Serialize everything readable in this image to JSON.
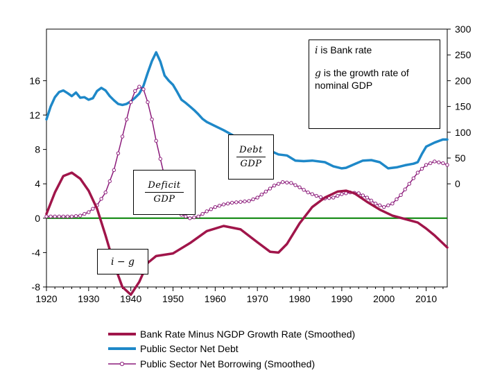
{
  "chart_data": {
    "type": "line",
    "x_range": [
      1920,
      2015
    ],
    "x_ticks": [
      "1920",
      "1930",
      "1940",
      "1950",
      "1960",
      "1970",
      "1980",
      "1990",
      "2000",
      "2010"
    ],
    "left_axis": {
      "range": [
        -8,
        22
      ],
      "ticks": [
        "16",
        "12",
        "8",
        "4",
        "0",
        "-4",
        "-8"
      ]
    },
    "right_axis": {
      "range": [
        -200,
        300
      ],
      "ticks": [
        "300",
        "250",
        "200",
        "150",
        "100",
        "50",
        "0"
      ]
    },
    "zero_line_color": "#008000",
    "series": [
      {
        "name": "Bank Rate Minus NGDP Growth Rate (Smoothed)",
        "color": "#a0154a",
        "axis": "left",
        "marker": "none",
        "points": [
          [
            1920,
            0.5
          ],
          [
            1922,
            3.0
          ],
          [
            1924,
            4.9
          ],
          [
            1926,
            5.3
          ],
          [
            1928,
            4.6
          ],
          [
            1930,
            3.2
          ],
          [
            1932,
            1.1
          ],
          [
            1934,
            -2.0
          ],
          [
            1936,
            -5.3
          ],
          [
            1938,
            -8.0
          ],
          [
            1940,
            -8.9
          ],
          [
            1942,
            -7.4
          ],
          [
            1944,
            -5.2
          ],
          [
            1946,
            -4.4
          ],
          [
            1950,
            -4.1
          ],
          [
            1954,
            -2.9
          ],
          [
            1958,
            -1.5
          ],
          [
            1962,
            -0.9
          ],
          [
            1966,
            -1.3
          ],
          [
            1970,
            -2.8
          ],
          [
            1973,
            -3.9
          ],
          [
            1975,
            -4.0
          ],
          [
            1977,
            -3.0
          ],
          [
            1980,
            -0.6
          ],
          [
            1983,
            1.3
          ],
          [
            1986,
            2.4
          ],
          [
            1989,
            3.1
          ],
          [
            1991,
            3.2
          ],
          [
            1993,
            2.9
          ],
          [
            1996,
            1.9
          ],
          [
            1999,
            1.0
          ],
          [
            2002,
            0.3
          ],
          [
            2005,
            -0.1
          ],
          [
            2008,
            -0.5
          ],
          [
            2010,
            -1.2
          ],
          [
            2012,
            -2.0
          ],
          [
            2015,
            -3.4
          ]
        ]
      },
      {
        "name": "Public Sector Net Debt",
        "color": "#1e88c8",
        "axis": "right",
        "marker": "none",
        "points": [
          [
            1920,
            125
          ],
          [
            1921,
            150
          ],
          [
            1922,
            168
          ],
          [
            1923,
            178
          ],
          [
            1924,
            181
          ],
          [
            1925,
            176
          ],
          [
            1926,
            170
          ],
          [
            1927,
            177
          ],
          [
            1928,
            167
          ],
          [
            1929,
            168
          ],
          [
            1930,
            163
          ],
          [
            1931,
            166
          ],
          [
            1932,
            180
          ],
          [
            1933,
            186
          ],
          [
            1934,
            181
          ],
          [
            1935,
            170
          ],
          [
            1936,
            162
          ],
          [
            1937,
            155
          ],
          [
            1938,
            153
          ],
          [
            1939,
            155
          ],
          [
            1940,
            160
          ],
          [
            1941,
            167
          ],
          [
            1942,
            175
          ],
          [
            1943,
            190
          ],
          [
            1944,
            215
          ],
          [
            1945,
            238
          ],
          [
            1946,
            255
          ],
          [
            1947,
            237
          ],
          [
            1948,
            210
          ],
          [
            1949,
            200
          ],
          [
            1950,
            192
          ],
          [
            1951,
            178
          ],
          [
            1952,
            163
          ],
          [
            1953,
            157
          ],
          [
            1954,
            150
          ],
          [
            1955,
            143
          ],
          [
            1956,
            135
          ],
          [
            1957,
            126
          ],
          [
            1958,
            120
          ],
          [
            1960,
            112
          ],
          [
            1962,
            104
          ],
          [
            1964,
            95
          ],
          [
            1966,
            85
          ],
          [
            1968,
            78
          ],
          [
            1970,
            73
          ],
          [
            1972,
            68
          ],
          [
            1975,
            57
          ],
          [
            1977,
            55
          ],
          [
            1979,
            45
          ],
          [
            1981,
            44
          ],
          [
            1983,
            45
          ],
          [
            1986,
            42
          ],
          [
            1988,
            34
          ],
          [
            1990,
            30
          ],
          [
            1991,
            31
          ],
          [
            1993,
            38
          ],
          [
            1995,
            45
          ],
          [
            1997,
            46
          ],
          [
            1999,
            42
          ],
          [
            2001,
            30
          ],
          [
            2003,
            32
          ],
          [
            2005,
            36
          ],
          [
            2007,
            39
          ],
          [
            2008,
            42
          ],
          [
            2009,
            58
          ],
          [
            2010,
            72
          ],
          [
            2012,
            80
          ],
          [
            2014,
            86
          ],
          [
            2015,
            86
          ]
        ]
      },
      {
        "name": "Public Sector Net Borrowing (Smoothed)",
        "color": "#8b1a7a",
        "axis": "left",
        "marker": "circle",
        "points": [
          [
            1920,
            0.2
          ],
          [
            1922,
            0.2
          ],
          [
            1924,
            0.2
          ],
          [
            1926,
            0.2
          ],
          [
            1928,
            0.3
          ],
          [
            1930,
            0.7
          ],
          [
            1932,
            1.5
          ],
          [
            1934,
            3.0
          ],
          [
            1936,
            5.6
          ],
          [
            1938,
            9.5
          ],
          [
            1940,
            13.5
          ],
          [
            1941,
            14.8
          ],
          [
            1942,
            15.3
          ],
          [
            1943,
            15.0
          ],
          [
            1944,
            13.5
          ],
          [
            1945,
            11.5
          ],
          [
            1946,
            9.0
          ],
          [
            1948,
            4.8
          ],
          [
            1950,
            1.8
          ],
          [
            1952,
            0.4
          ],
          [
            1954,
            0.0
          ],
          [
            1956,
            0.2
          ],
          [
            1958,
            0.8
          ],
          [
            1960,
            1.3
          ],
          [
            1962,
            1.6
          ],
          [
            1964,
            1.8
          ],
          [
            1966,
            1.9
          ],
          [
            1968,
            2.0
          ],
          [
            1970,
            2.4
          ],
          [
            1972,
            3.1
          ],
          [
            1974,
            3.8
          ],
          [
            1976,
            4.2
          ],
          [
            1978,
            4.1
          ],
          [
            1980,
            3.6
          ],
          [
            1982,
            3.0
          ],
          [
            1984,
            2.6
          ],
          [
            1986,
            2.3
          ],
          [
            1988,
            2.4
          ],
          [
            1990,
            2.8
          ],
          [
            1992,
            3.0
          ],
          [
            1994,
            2.9
          ],
          [
            1996,
            2.4
          ],
          [
            1998,
            1.7
          ],
          [
            2000,
            1.3
          ],
          [
            2002,
            1.7
          ],
          [
            2004,
            2.7
          ],
          [
            2006,
            4.0
          ],
          [
            2008,
            5.3
          ],
          [
            2010,
            6.2
          ],
          [
            2012,
            6.6
          ],
          [
            2014,
            6.4
          ],
          [
            2015,
            6.2
          ]
        ]
      }
    ],
    "annotations": {
      "note_line1_var": "i",
      "note_line1_text": " is Bank rate",
      "note_line2_var": "g",
      "note_line2_text": " is the growth rate of nominal GDP",
      "debt_num": "Debt",
      "debt_den": "GDP",
      "deficit_num": "Deficit",
      "deficit_den": "GDP",
      "i_minus_g": "i − g"
    }
  }
}
